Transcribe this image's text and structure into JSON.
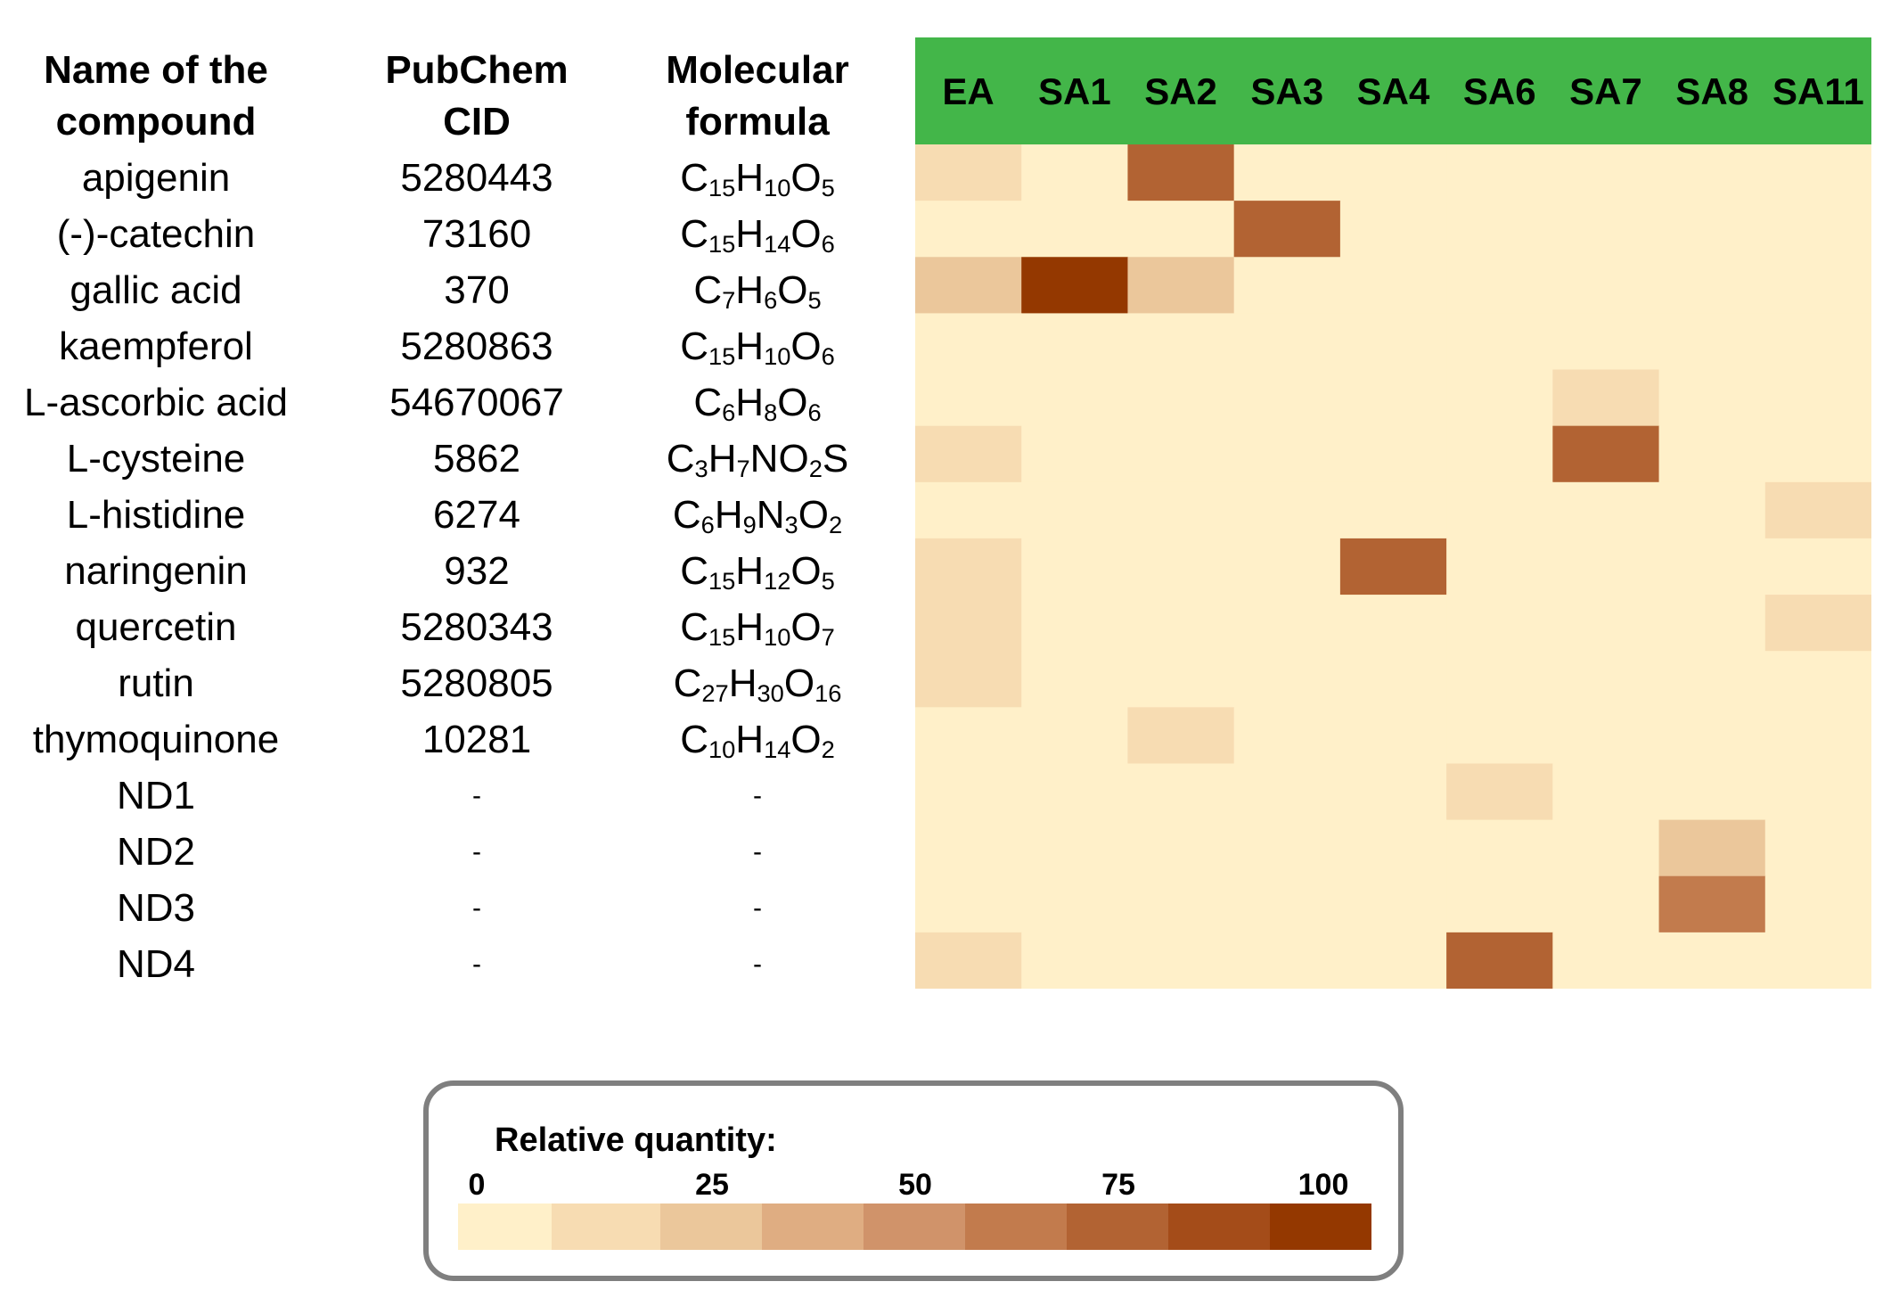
{
  "table": {
    "headers": {
      "name": [
        "Name of the",
        "compound"
      ],
      "cid": [
        "PubChem",
        "CID"
      ],
      "formula": [
        "Molecular",
        "formula"
      ]
    },
    "rows": [
      {
        "name": "apigenin",
        "cid": "5280443",
        "formula": [
          [
            "C",
            "15"
          ],
          [
            "H",
            "10"
          ],
          [
            "O",
            "5"
          ]
        ]
      },
      {
        "name": "(-)-catechin",
        "cid": "73160",
        "formula": [
          [
            "C",
            "15"
          ],
          [
            "H",
            "14"
          ],
          [
            "O",
            "6"
          ]
        ]
      },
      {
        "name": "gallic acid",
        "cid": "370",
        "formula": [
          [
            "C",
            "7"
          ],
          [
            "H",
            "6"
          ],
          [
            "O",
            "5"
          ]
        ]
      },
      {
        "name": "kaempferol",
        "cid": "5280863",
        "formula": [
          [
            "C",
            "15"
          ],
          [
            "H",
            "10"
          ],
          [
            "O",
            "6"
          ]
        ]
      },
      {
        "name": "L-ascorbic acid",
        "cid": "54670067",
        "formula": [
          [
            "C",
            "6"
          ],
          [
            "H",
            "8"
          ],
          [
            "O",
            "6"
          ]
        ]
      },
      {
        "name": "L-cysteine",
        "cid": "5862",
        "formula": [
          [
            "C",
            "3"
          ],
          [
            "H",
            "7"
          ],
          [
            "N",
            ""
          ],
          [
            "O",
            "2"
          ],
          [
            "S",
            ""
          ]
        ]
      },
      {
        "name": "L-histidine",
        "cid": "6274",
        "formula": [
          [
            "C",
            "6"
          ],
          [
            "H",
            "9"
          ],
          [
            "N",
            "3"
          ],
          [
            "O",
            "2"
          ]
        ]
      },
      {
        "name": "naringenin",
        "cid": "932",
        "formula": [
          [
            "C",
            "15"
          ],
          [
            "H",
            "12"
          ],
          [
            "O",
            "5"
          ]
        ]
      },
      {
        "name": "quercetin",
        "cid": "5280343",
        "formula": [
          [
            "C",
            "15"
          ],
          [
            "H",
            "10"
          ],
          [
            "O",
            "7"
          ]
        ]
      },
      {
        "name": "rutin",
        "cid": "5280805",
        "formula": [
          [
            "C",
            "27"
          ],
          [
            "H",
            "30"
          ],
          [
            "O",
            "16"
          ]
        ]
      },
      {
        "name": "thymoquinone",
        "cid": "10281",
        "formula": [
          [
            "C",
            "10"
          ],
          [
            "H",
            "14"
          ],
          [
            "O",
            "2"
          ]
        ]
      },
      {
        "name": "ND1",
        "cid": "-",
        "formula": "-"
      },
      {
        "name": "ND2",
        "cid": "-",
        "formula": "-"
      },
      {
        "name": "ND3",
        "cid": "-",
        "formula": "-"
      },
      {
        "name": "ND4",
        "cid": "-",
        "formula": "-"
      }
    ]
  },
  "chart_data": {
    "type": "heatmap",
    "columns": [
      "EA",
      "SA1",
      "SA2",
      "SA3",
      "SA4",
      "SA6",
      "SA7",
      "SA8",
      "SA11"
    ],
    "rows": [
      "apigenin",
      "(-)-catechin",
      "gallic acid",
      "kaempferol",
      "L-ascorbic acid",
      "L-cysteine",
      "L-histidine",
      "naringenin",
      "quercetin",
      "rutin",
      "thymoquinone",
      "ND1",
      "ND2",
      "ND3",
      "ND4"
    ],
    "values": [
      [
        15,
        0,
        70,
        0,
        0,
        0,
        0,
        0,
        0
      ],
      [
        0,
        0,
        0,
        70,
        0,
        0,
        0,
        0,
        0
      ],
      [
        25,
        100,
        25,
        5,
        0,
        0,
        0,
        0,
        0
      ],
      [
        3,
        0,
        0,
        0,
        0,
        0,
        0,
        0,
        0
      ],
      [
        3,
        0,
        0,
        0,
        0,
        0,
        15,
        0,
        0
      ],
      [
        15,
        0,
        0,
        0,
        0,
        0,
        75,
        0,
        0
      ],
      [
        0,
        0,
        0,
        0,
        0,
        0,
        0,
        0,
        12
      ],
      [
        8,
        0,
        0,
        0,
        80,
        0,
        0,
        0,
        0
      ],
      [
        10,
        0,
        0,
        0,
        0,
        0,
        0,
        0,
        10
      ],
      [
        7,
        0,
        0,
        0,
        0,
        0,
        0,
        0,
        6
      ],
      [
        6,
        0,
        15,
        0,
        0,
        0,
        0,
        0,
        0
      ],
      [
        6,
        0,
        0,
        0,
        0,
        12,
        0,
        0,
        0
      ],
      [
        6,
        0,
        0,
        0,
        0,
        0,
        0,
        25,
        0
      ],
      [
        6,
        0,
        0,
        0,
        0,
        0,
        0,
        68,
        0
      ],
      [
        12,
        0,
        0,
        0,
        0,
        80,
        0,
        0,
        0
      ]
    ],
    "value_range": [
      0,
      100
    ],
    "header_color": "#43b649",
    "color_scale": [
      "#fff0c9",
      "#f7dcb2",
      "#ebc79b",
      "#dfad82",
      "#d0936a",
      "#c27b4d",
      "#b26333",
      "#a44c19",
      "#943800"
    ],
    "legend": {
      "title": "Relative quantity:",
      "ticks": [
        "0",
        "25",
        "50",
        "75",
        "100"
      ]
    }
  }
}
